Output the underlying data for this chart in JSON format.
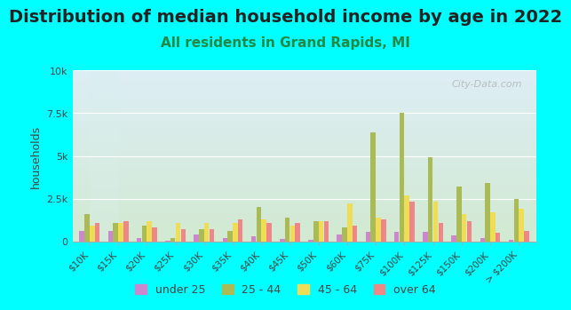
{
  "title": "Distribution of median household income by age in 2022",
  "subtitle": "All residents in Grand Rapids, MI",
  "xlabel": "",
  "ylabel": "households",
  "background_color": "#00FFFF",
  "plot_bg_gradient_top": "#e8f5e8",
  "plot_bg_gradient_bottom": "#f0f8ff",
  "categories": [
    "$10K",
    "$15K",
    "$20K",
    "$25K",
    "$30K",
    "$35K",
    "$40K",
    "$45K",
    "$50K",
    "$60K",
    "$75K",
    "$100K",
    "$125K",
    "$150K",
    "$200K",
    "> $200K"
  ],
  "series": {
    "under 25": [
      600,
      600,
      200,
      50,
      400,
      200,
      300,
      150,
      100,
      400,
      550,
      550,
      550,
      350,
      200,
      100
    ],
    "25 - 44": [
      1600,
      1100,
      900,
      200,
      700,
      600,
      2000,
      1400,
      1200,
      800,
      6400,
      7500,
      4900,
      3200,
      3400,
      2500
    ],
    "45 - 64": [
      900,
      1100,
      1200,
      1100,
      1100,
      1100,
      1300,
      900,
      1200,
      2200,
      1400,
      2700,
      2300,
      1600,
      1700,
      1900
    ],
    "over 64": [
      1100,
      1200,
      800,
      700,
      700,
      1300,
      1100,
      1100,
      1200,
      900,
      1300,
      2300,
      1100,
      1200,
      500,
      600
    ]
  },
  "colors": {
    "under 25": "#cc88cc",
    "25 - 44": "#aabb55",
    "45 - 64": "#eedd55",
    "over 64": "#ee8888"
  },
  "ylim": [
    0,
    10000
  ],
  "yticks": [
    0,
    2500,
    5000,
    7500,
    10000
  ],
  "ytick_labels": [
    "0",
    "2.5k",
    "5k",
    "7.5k",
    "10k"
  ],
  "watermark": "City-Data.com",
  "title_fontsize": 14,
  "subtitle_fontsize": 11,
  "legend_fontsize": 9
}
